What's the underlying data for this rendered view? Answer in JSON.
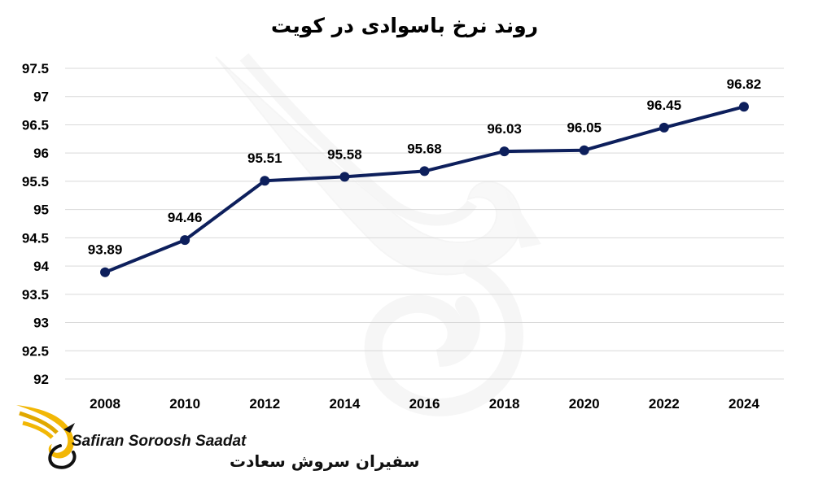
{
  "chart_data": {
    "type": "line",
    "title": "روند نرخ باسوادی در کویت",
    "xlabel": "",
    "ylabel": "",
    "categories": [
      "2008",
      "2010",
      "2012",
      "2014",
      "2016",
      "2018",
      "2020",
      "2022",
      "2024"
    ],
    "series": [
      {
        "values": [
          93.89,
          94.46,
          95.51,
          95.58,
          95.68,
          96.03,
          96.05,
          96.45,
          96.82
        ],
        "data_labels": [
          "93.89",
          "94.46",
          "95.51",
          "95.58",
          "95.68",
          "96.03",
          "96.05",
          "96.45",
          "96.82"
        ]
      }
    ],
    "ylim": [
      92,
      97.5
    ],
    "yticks": [
      "92",
      "92.5",
      "93",
      "93.5",
      "94",
      "94.5",
      "95",
      "95.5",
      "96",
      "96.5",
      "97",
      "97.5"
    ],
    "grid": true,
    "legend": "none",
    "line_color": "#0d1f5c",
    "grid_color": "#d9d9d9"
  },
  "logo": {
    "name_en": "Safiran Soroosh Saadat",
    "name_fa": "سفیران سروش سعادت",
    "accent_color": "#f2b705",
    "icon": "wing-bird-logo-icon"
  },
  "watermark": {
    "icon": "wing-bird-watermark-icon"
  }
}
